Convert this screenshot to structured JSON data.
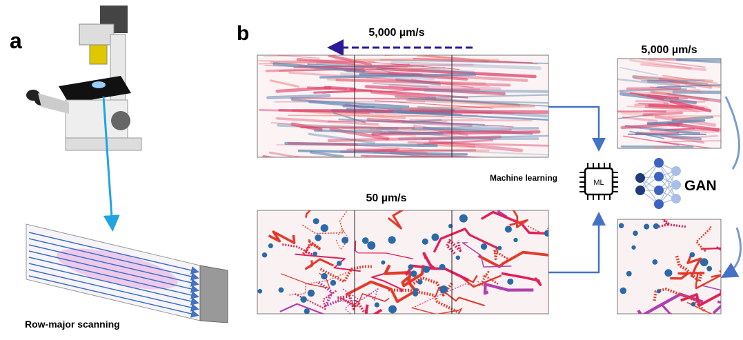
{
  "panel_a": {
    "label": "a",
    "caption": "Row-major scanning"
  },
  "panel_b": {
    "label": "b",
    "fast_speed": "5,000 µm/s",
    "slow_speed": "50 µm/s",
    "method": "Machine learning",
    "chip_label": "ML",
    "output_speed": "5,000 µm/s",
    "model": "GAN"
  }
}
